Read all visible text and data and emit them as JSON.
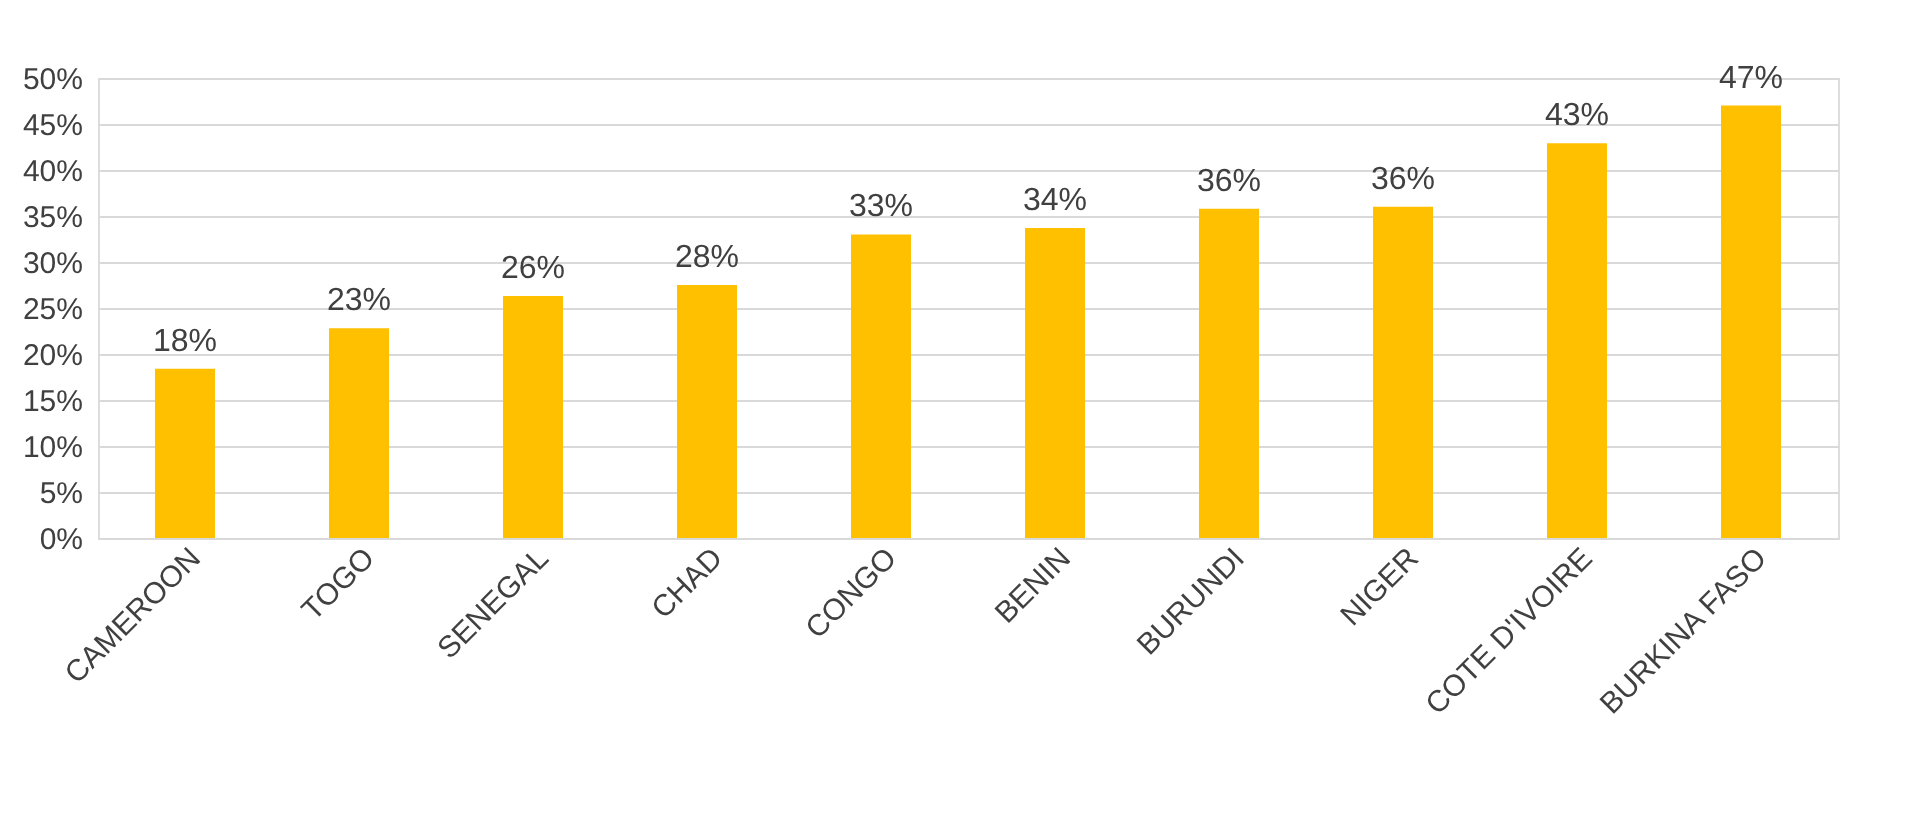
{
  "chart_data": {
    "type": "bar",
    "categories": [
      "CAMEROON",
      "TOGO",
      "SENEGAL",
      "CHAD",
      "CONGO",
      "BENIN",
      "BURUNDI",
      "NIGER",
      "COTE D'IVOIRE",
      "BURKINA FASO"
    ],
    "values": [
      18.4,
      22.8,
      26.3,
      27.5,
      33,
      33.7,
      35.8,
      36,
      42.9,
      47
    ],
    "value_labels": [
      "18%",
      "23%",
      "26%",
      "28%",
      "33%",
      "34%",
      "36%",
      "36%",
      "43%",
      "47%"
    ],
    "color": "#ffc000",
    "ylim": [
      0,
      50
    ],
    "yticks": [
      {
        "value": 0,
        "label": "0%"
      },
      {
        "value": 5,
        "label": "5%"
      },
      {
        "value": 10,
        "label": "10%"
      },
      {
        "value": 15,
        "label": "15%"
      },
      {
        "value": 20,
        "label": "20%"
      },
      {
        "value": 25,
        "label": "25%"
      },
      {
        "value": 30,
        "label": "30%"
      },
      {
        "value": 35,
        "label": "35%"
      },
      {
        "value": 40,
        "label": "40%"
      },
      {
        "value": 45,
        "label": "45%"
      },
      {
        "value": 50,
        "label": "50%"
      }
    ],
    "grid": "y"
  }
}
